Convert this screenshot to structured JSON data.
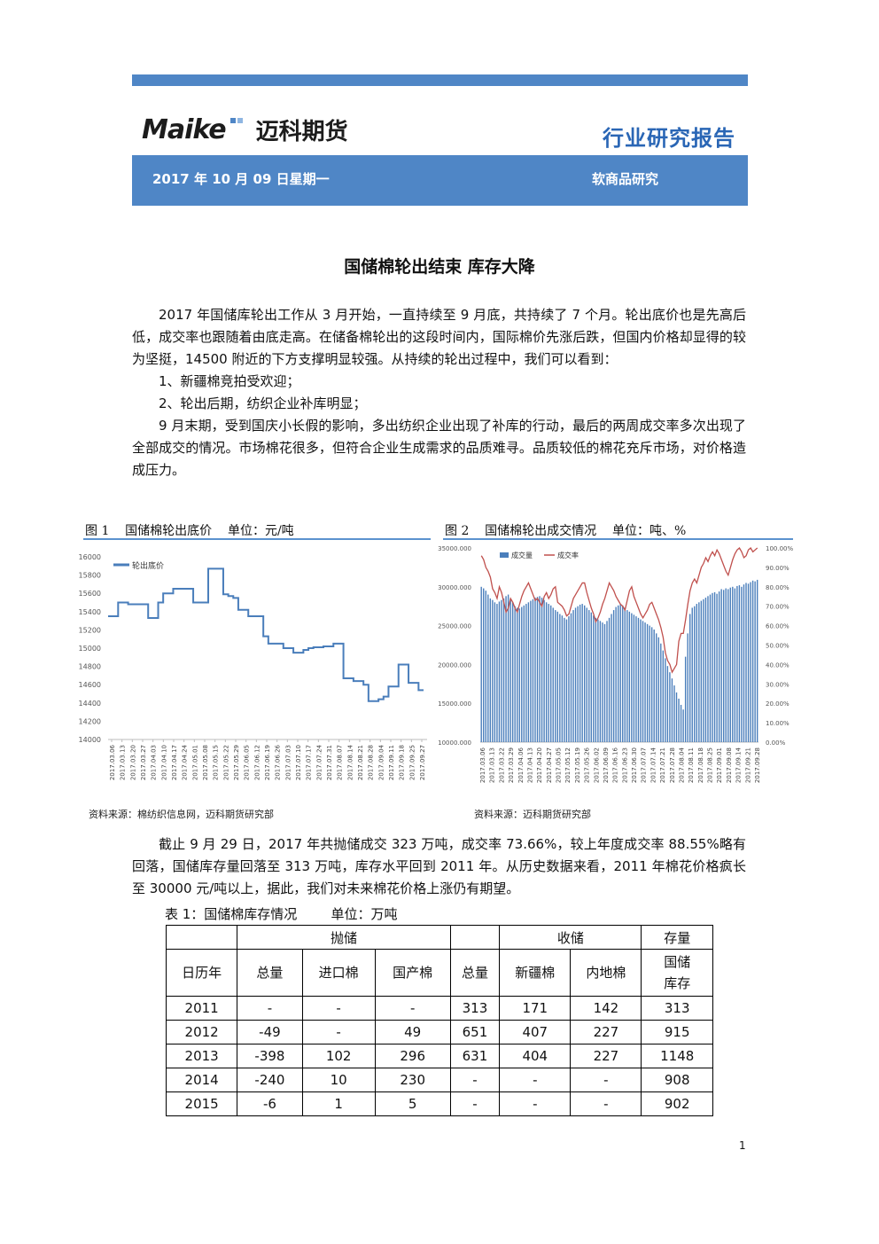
{
  "header": {
    "logo_latin": "Maike",
    "logo_cn": "迈科期货",
    "report_type": "行业研究报告",
    "date": "2017 年 10 月 09 日星期一",
    "category": "软商品研究"
  },
  "article": {
    "title": "国储棉轮出结束 库存大降",
    "para1": "2017 年国储库轮出工作从 3 月开始，一直持续至 9 月底，共持续了 7 个月。轮出底价也是先高后低，成交率也跟随着由底走高。在储备棉轮出的这段时间内，国际棉价先涨后跌，但国内价格却显得的较为坚挺，14500 附近的下方支撑明显较强。从持续的轮出过程中，我们可以看到：",
    "item1": "1、新疆棉竞拍受欢迎；",
    "item2": "2、轮出后期，纺织企业补库明显；",
    "para2": "9 月末期，受到国庆小长假的影响，多出纺织企业出现了补库的行动，最后的两周成交率多次出现了全部成交的情况。市场棉花很多，但符合企业生成需求的品质难寻。品质较低的棉花充斥市场，对价格造成压力。",
    "para3": "截止 9 月 29 日，2017 年共抛储成交 323 万吨，成交率 73.66%，较上年度成交率 88.55%略有回落，国储库存量回落至 313 万吨，库存水平回到 2011 年。从历史数据来看，2011 年棉花价格疯长至 30000 元/吨以上，据此，我们对未来棉花价格上涨仍有期望。"
  },
  "figure1": {
    "title": "图 1    国储棉轮出底价    单位：元/吨",
    "source": "资料来源：棉纺织信息网，迈科期货研究部"
  },
  "figure2": {
    "title": "图 2    国储棉轮出成交情况    单位：吨、%",
    "source": "资料来源：迈科期货研究部"
  },
  "chart_data": [
    {
      "type": "line",
      "title": "",
      "series": [
        {
          "name": "轮出底价",
          "values": [
            15350,
            15350,
            15500,
            15500,
            15480,
            15480,
            15480,
            15480,
            15330,
            15330,
            15500,
            15600,
            15600,
            15650,
            15650,
            15650,
            15650,
            15500,
            15500,
            15500,
            15870,
            15870,
            15870,
            15590,
            15570,
            15550,
            15420,
            15420,
            15350,
            15350,
            15350,
            15130,
            15050,
            15050,
            15050,
            15000,
            15000,
            14950,
            14950,
            14980,
            15000,
            15010,
            15010,
            15020,
            15020,
            15050,
            15050,
            14670,
            14670,
            14640,
            14640,
            14600,
            14420,
            14420,
            14440,
            14470,
            14580,
            14580,
            14820,
            14820,
            14620,
            14620,
            14540,
            14540
          ]
        }
      ],
      "x_tick_labels": [
        "2017.03.06",
        "2017.03.13",
        "2017.03.20",
        "2017.03.27",
        "2017.04.03",
        "2017.04.10",
        "2017.04.17",
        "2017.04.24",
        "2017.05.01",
        "2017.05.08",
        "2017.05.15",
        "2017.05.22",
        "2017.05.29",
        "2017.06.05",
        "2017.06.12",
        "2017.06.19",
        "2017.06.26",
        "2017.07.03",
        "2017.07.10",
        "2017.07.17",
        "2017.07.24",
        "2017.07.31",
        "2017.08.07",
        "2017.08.14",
        "2017.08.21",
        "2017.08.28",
        "2017.09.04",
        "2017.09.11",
        "2017.09.18",
        "2017.09.25",
        "2017.09.27"
      ],
      "y_ticks": [
        "14000",
        "14200",
        "14400",
        "14600",
        "14800",
        "15000",
        "15200",
        "15400",
        "15600",
        "15800",
        "16000"
      ],
      "ylim": [
        14000,
        16000
      ],
      "legend": "top-left",
      "legend_position": "top-left",
      "grid": false
    },
    {
      "type": "bar+line",
      "title": "",
      "series": [
        {
          "name": "成交量",
          "axis": "left",
          "values": [
            30000,
            29800,
            29500,
            29000,
            28500,
            28300,
            28000,
            27800,
            28100,
            28300,
            28500,
            28800,
            29000,
            28500,
            28000,
            27500,
            27300,
            27200,
            27400,
            27600,
            27800,
            28000,
            28200,
            28400,
            28600,
            28700,
            28800,
            28600,
            28300,
            28000,
            27800,
            27600,
            27300,
            27000,
            26800,
            26500,
            26300,
            26000,
            25800,
            26200,
            26600,
            27000,
            27300,
            27500,
            27700,
            27800,
            27600,
            27300,
            27000,
            26700,
            26300,
            26000,
            25800,
            25600,
            25400,
            25200,
            25600,
            26000,
            26500,
            27000,
            27400,
            27600,
            27800,
            27600,
            27300,
            27000,
            26800,
            26600,
            26400,
            26200,
            26000,
            25800,
            25600,
            25400,
            25200,
            25000,
            24800,
            24500,
            24000,
            23500,
            22700,
            21800,
            20800,
            19800,
            19000,
            18200,
            17300,
            16400,
            15600,
            14800,
            14200,
            21000,
            24000,
            26500,
            27300,
            27500,
            27800,
            28000,
            28200,
            28400,
            28600,
            28800,
            29000,
            29200,
            29300,
            29100,
            29400,
            29700,
            29600,
            29800,
            29700,
            29900,
            30000,
            29800,
            30100,
            30200,
            30000,
            30300,
            30500,
            30400,
            30600,
            30800,
            30700,
            30900
          ]
        },
        {
          "name": "成交率",
          "axis": "right",
          "values": [
            96,
            94,
            90,
            88,
            85,
            79,
            77,
            74,
            80,
            77,
            72,
            67,
            69,
            74,
            72,
            69,
            67,
            71,
            75,
            78,
            80,
            82,
            79,
            76,
            73,
            74,
            72,
            70,
            75,
            77,
            74,
            76,
            79,
            80,
            72,
            71,
            70,
            68,
            65,
            66,
            70,
            74,
            76,
            78,
            80,
            82,
            82,
            77,
            73,
            69,
            66,
            62,
            64,
            67,
            71,
            74,
            78,
            82,
            80,
            78,
            75,
            73,
            71,
            70,
            68,
            73,
            78,
            80,
            75,
            72,
            69,
            66,
            64,
            66,
            68,
            71,
            72,
            69,
            66,
            63,
            59,
            54,
            46,
            42,
            40,
            36,
            38,
            40,
            52,
            56,
            56,
            63,
            71,
            78,
            82,
            84,
            82,
            86,
            90,
            92,
            95,
            93,
            96,
            98,
            96,
            99,
            97,
            94,
            91,
            88,
            86,
            90,
            94,
            97,
            99,
            100,
            98,
            95,
            96,
            99,
            100,
            98,
            99,
            100
          ]
        }
      ],
      "x_tick_labels": [
        "2017.03.06",
        "2017.03.13",
        "2017.03.22",
        "2017.03.29",
        "2017.04.06",
        "2017.04.13",
        "2017.04.20",
        "2017.04.27",
        "2017.05.05",
        "2017.05.12",
        "2017.05.19",
        "2017.05.26",
        "2017.06.02",
        "2017.06.09",
        "2017.06.16",
        "2017.06.23",
        "2017.06.30",
        "2017.07.07",
        "2017.07.14",
        "2017.07.21",
        "2017.07.28",
        "2017.08.04",
        "2017.08.11",
        "2017.08.18",
        "2017.08.25",
        "2017.09.01",
        "2017.09.08",
        "2017.09.14",
        "2017.09.21",
        "2017.09.28"
      ],
      "y_left_ticks": [
        "10000.000",
        "15000.000",
        "20000.000",
        "25000.000",
        "30000.000",
        "35000.000"
      ],
      "y_right_ticks": [
        "0.00%",
        "10.00%",
        "20.00%",
        "30.00%",
        "40.00%",
        "50.00%",
        "60.00%",
        "70.00%",
        "80.00%",
        "90.00%",
        "100.00%"
      ],
      "ylim_left": [
        10000,
        35000
      ],
      "ylim_right": [
        0,
        100
      ],
      "legend": "top-left",
      "legend_position": "top-left",
      "grid": false
    }
  ],
  "table": {
    "caption": "表 1：国储棉库存情况        单位：万吨",
    "group_headers": [
      "抛储",
      "收储",
      "存量"
    ],
    "columns": [
      "日历年",
      "总量",
      "进口棉",
      "国产棉",
      "总量",
      "新疆棉",
      "内地棉",
      "国储库存"
    ],
    "rows": [
      [
        "2011",
        "-",
        "-",
        "-",
        "313",
        "171",
        "142",
        "313"
      ],
      [
        "2012",
        "-49",
        "-",
        "49",
        "651",
        "407",
        "227",
        "915"
      ],
      [
        "2013",
        "-398",
        "102",
        "296",
        "631",
        "404",
        "227",
        "1148"
      ],
      [
        "2014",
        "-240",
        "10",
        "230",
        "-",
        "-",
        "-",
        "908"
      ],
      [
        "2015",
        "-6",
        "1",
        "5",
        "-",
        "-",
        "-",
        "902"
      ]
    ]
  },
  "footer": {
    "page": "1"
  },
  "colors": {
    "accent": "#4f86c6",
    "report_type": "#2a66b5",
    "line": "#4a7ebb",
    "rate_line": "#c0504d"
  }
}
